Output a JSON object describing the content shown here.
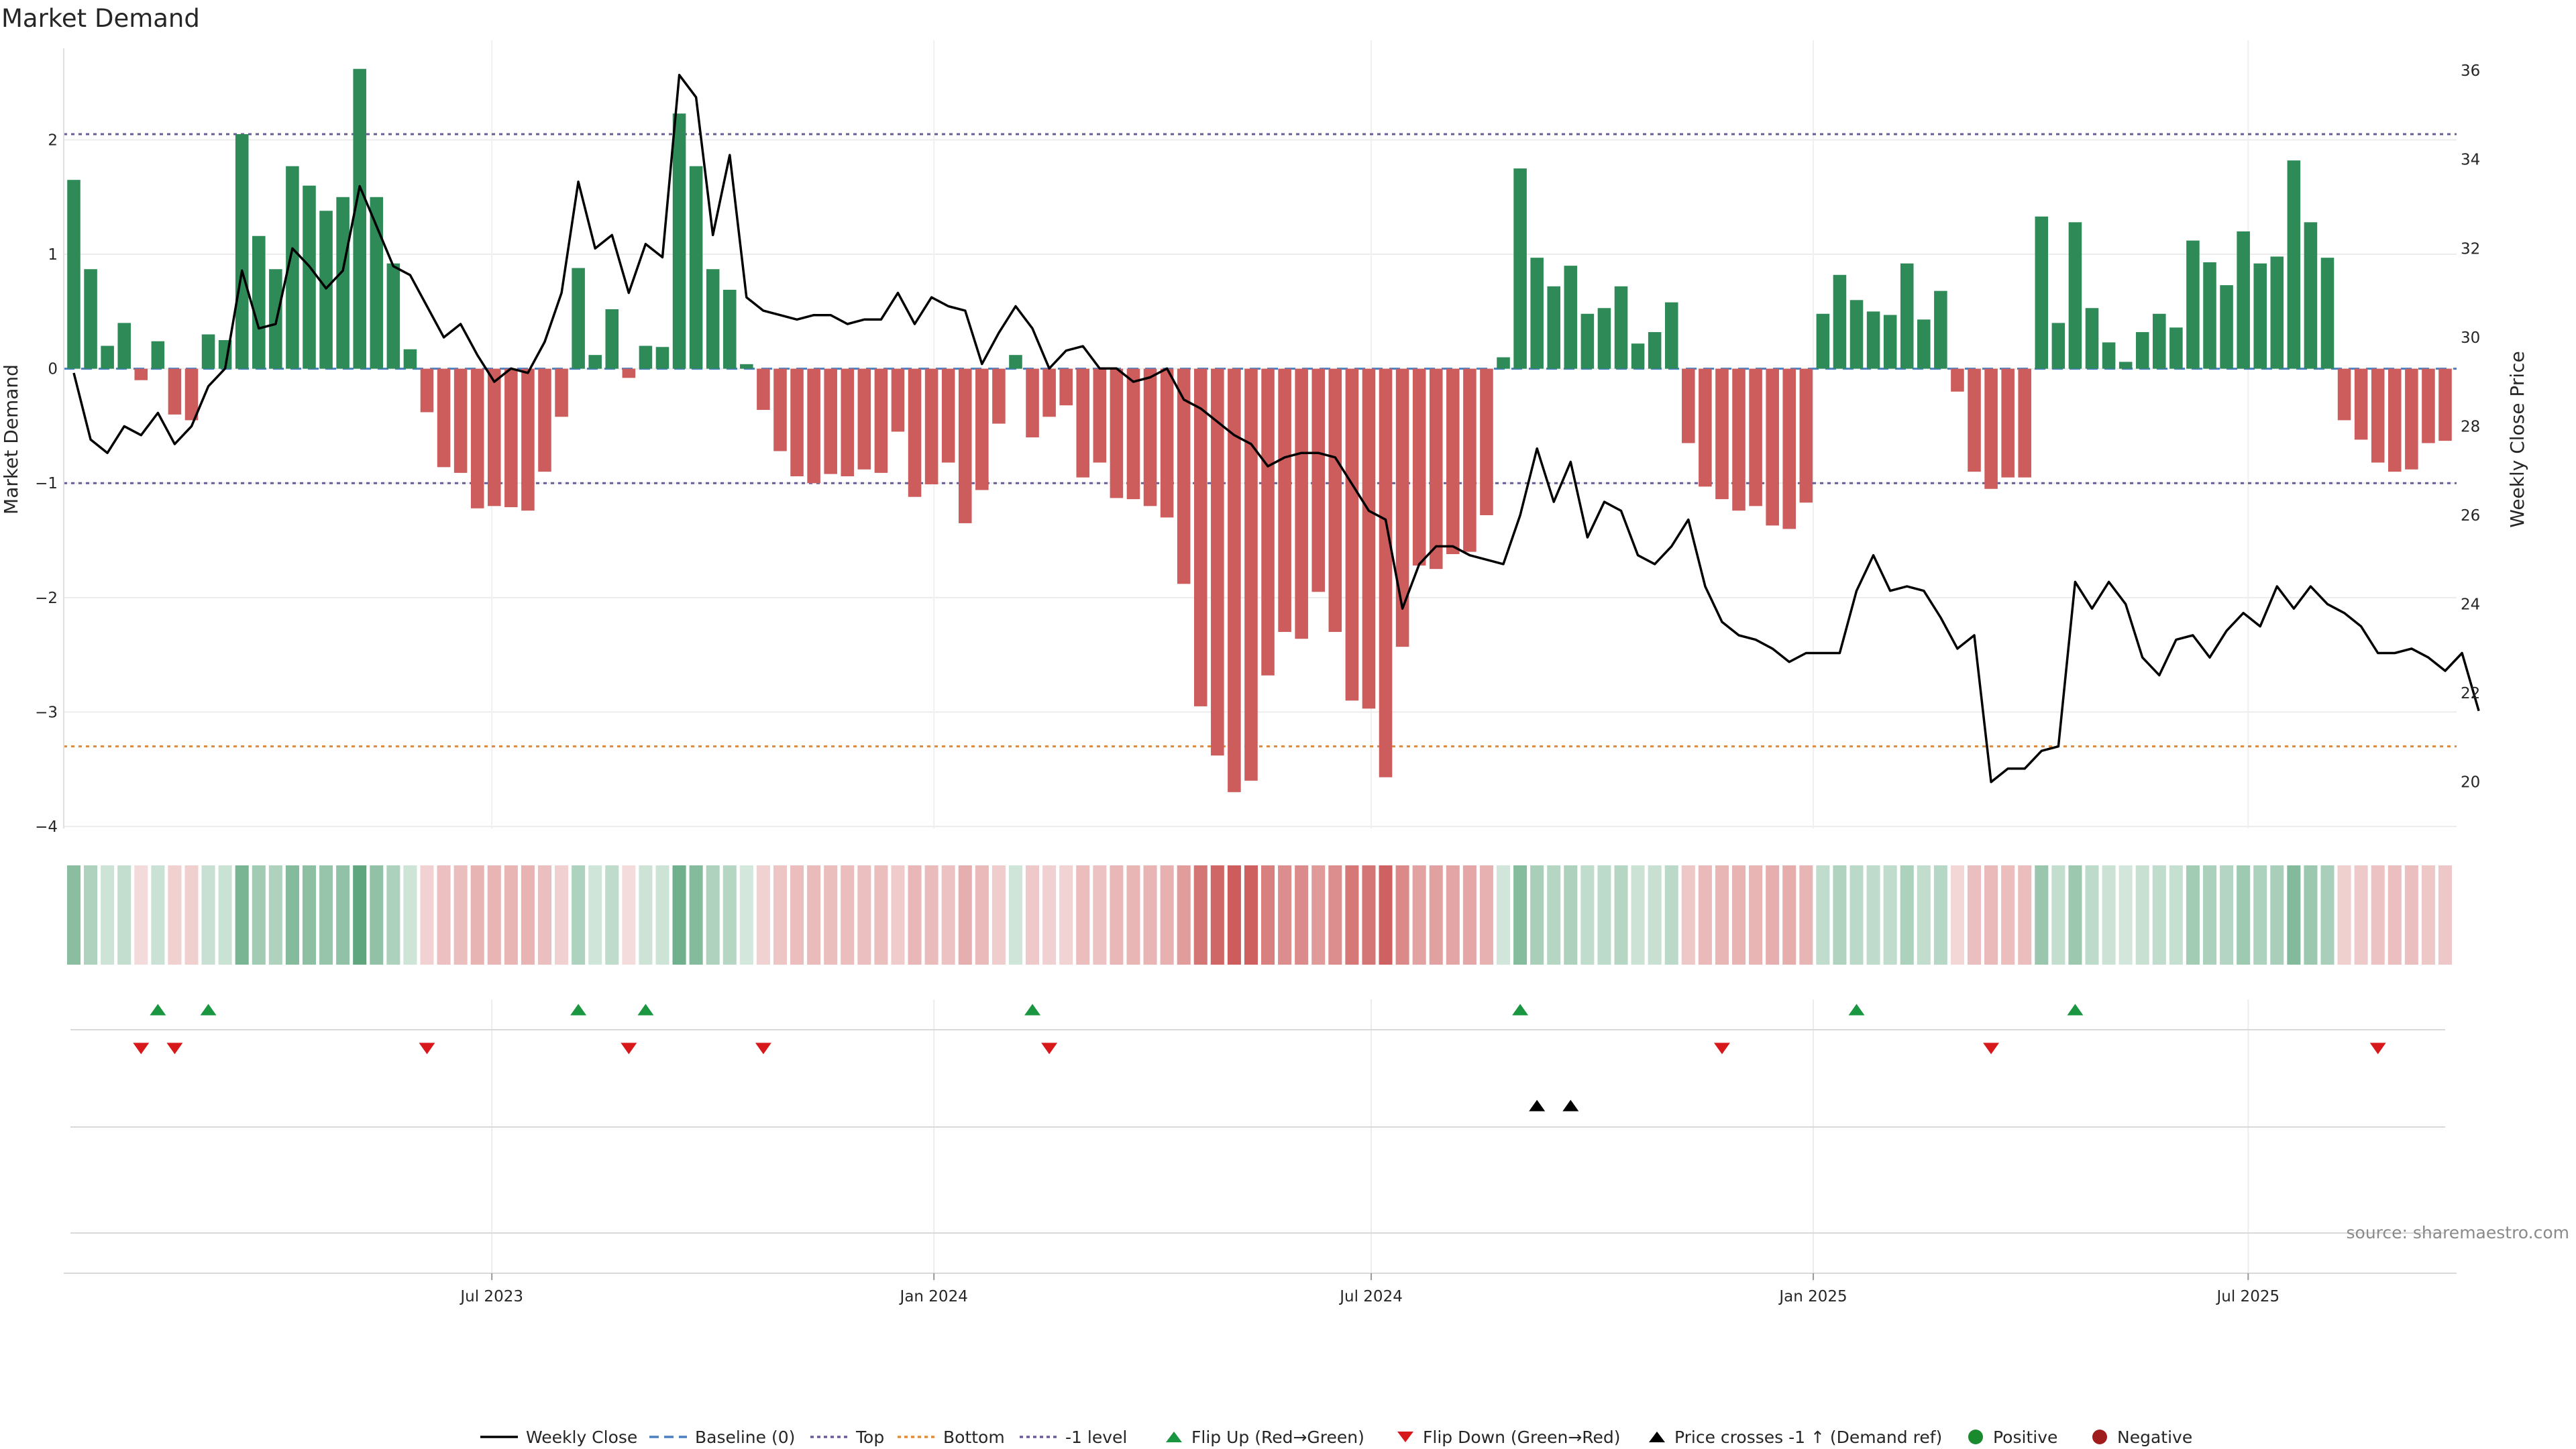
{
  "title": "Market Demand",
  "source": "source: sharemaestro.com",
  "colors": {
    "positive": "#2e8b57",
    "negative": "#cd5c5c",
    "price_line": "#000000",
    "baseline": "#4a7fc1",
    "top": "#6b5b95",
    "bottom": "#e08a3c",
    "minus_one": "#6b5b95",
    "flip_up": "#1a9641",
    "flip_down": "#d7191c",
    "cross": "#000000",
    "positive_dot": "#1a8a2e",
    "negative_dot": "#a01c1c"
  },
  "chart_data": {
    "type": "bar",
    "x_axis": {
      "tick_labels": [
        "Jul 2023",
        "Jan 2024",
        "Jul 2024",
        "Jan 2025",
        "Jul 2025"
      ],
      "tick_dates": [
        "2023-07-01",
        "2024-01-01",
        "2024-07-01",
        "2025-01-01",
        "2025-07-01"
      ],
      "range": [
        "2023-01-08",
        "2025-10-26"
      ]
    },
    "y_left": {
      "label": "Market Demand",
      "ticks": [
        2,
        1,
        0,
        -1,
        -2,
        -3,
        -4
      ],
      "range": [
        -4,
        2.8
      ]
    },
    "y_right": {
      "label": "Weekly Close Price",
      "ticks": [
        36,
        34,
        32,
        30,
        28,
        26,
        24,
        22,
        20
      ],
      "range": [
        19,
        36.5
      ]
    },
    "reference_lines": {
      "top": 2.05,
      "bottom": -3.3,
      "minus_one": -1.0,
      "baseline": 0
    },
    "start_date": "2023-01-08",
    "interval_days": 7,
    "demand": [
      1.65,
      0.87,
      0.2,
      0.4,
      -0.1,
      0.24,
      -0.4,
      -0.45,
      0.3,
      0.25,
      2.05,
      1.16,
      0.87,
      1.77,
      1.6,
      1.38,
      1.5,
      2.62,
      1.5,
      0.92,
      0.17,
      -0.38,
      -0.86,
      -0.91,
      -1.22,
      -1.2,
      -1.21,
      -1.24,
      -0.9,
      -0.42,
      0.88,
      0.12,
      0.52,
      -0.08,
      0.2,
      0.19,
      2.23,
      1.77,
      0.87,
      0.69,
      0.04,
      -0.36,
      -0.72,
      -0.94,
      -1.0,
      -0.92,
      -0.94,
      -0.88,
      -0.91,
      -0.55,
      -1.12,
      -1.01,
      -0.82,
      -1.35,
      -1.06,
      -0.48,
      0.12,
      -0.6,
      -0.42,
      -0.32,
      -0.95,
      -0.82,
      -1.13,
      -1.14,
      -1.2,
      -1.3,
      -1.88,
      -2.95,
      -3.38,
      -3.7,
      -3.6,
      -2.68,
      -2.3,
      -2.36,
      -1.95,
      -2.3,
      -2.9,
      -2.97,
      -3.57,
      -2.43,
      -1.72,
      -1.75,
      -1.62,
      -1.6,
      -1.28,
      0.1,
      1.75,
      0.97,
      0.72,
      0.9,
      0.48,
      0.53,
      0.72,
      0.22,
      0.32,
      0.58,
      -0.65,
      -1.03,
      -1.14,
      -1.24,
      -1.2,
      -1.37,
      -1.4,
      -1.17,
      0.48,
      0.82,
      0.6,
      0.5,
      0.47,
      0.92,
      0.43,
      0.68,
      -0.2,
      -0.9,
      -1.05,
      -0.95,
      -0.95,
      1.33,
      0.4,
      1.28,
      0.53,
      0.23,
      0.06,
      0.32,
      0.48,
      0.36,
      1.12,
      0.93,
      0.73,
      1.2,
      0.92,
      0.98,
      1.82,
      1.28,
      0.97,
      -0.45,
      -0.62,
      -0.82,
      -0.9,
      -0.88,
      -0.65,
      -0.63
    ],
    "price": [
      29.2,
      27.7,
      27.4,
      28.0,
      27.8,
      28.3,
      27.6,
      28.0,
      28.9,
      29.3,
      31.5,
      30.2,
      30.3,
      32.0,
      31.6,
      31.1,
      31.5,
      33.4,
      32.5,
      31.6,
      31.4,
      30.7,
      30.0,
      30.3,
      29.6,
      29.0,
      29.3,
      29.2,
      29.9,
      31.0,
      33.5,
      32.0,
      32.3,
      31.0,
      32.1,
      31.8,
      35.9,
      35.4,
      32.3,
      34.1,
      30.9,
      30.6,
      30.5,
      30.4,
      30.5,
      30.5,
      30.3,
      30.4,
      30.4,
      31.0,
      30.3,
      30.9,
      30.7,
      30.6,
      29.4,
      30.1,
      30.7,
      30.2,
      29.3,
      29.7,
      29.8,
      29.3,
      29.3,
      29.0,
      29.1,
      29.3,
      28.6,
      28.4,
      28.1,
      27.8,
      27.6,
      27.1,
      27.3,
      27.4,
      27.4,
      27.3,
      26.7,
      26.1,
      25.9,
      23.9,
      24.9,
      25.3,
      25.3,
      25.1,
      25.0,
      24.9,
      26.0,
      27.5,
      26.3,
      27.2,
      25.5,
      26.3,
      26.1,
      25.1,
      24.9,
      25.3,
      25.9,
      24.4,
      23.6,
      23.3,
      23.2,
      23.0,
      22.7,
      22.9,
      22.9,
      22.9,
      24.3,
      25.1,
      24.3,
      24.4,
      24.3,
      23.7,
      23.0,
      23.3,
      20.0,
      20.3,
      20.3,
      20.7,
      20.8,
      24.5,
      23.9,
      24.5,
      24.0,
      22.8,
      22.4,
      23.2,
      23.3,
      22.8,
      23.4,
      23.8,
      23.5,
      24.4,
      23.9,
      24.4,
      24.0,
      23.8,
      23.5,
      22.9,
      22.9,
      23.0,
      22.8,
      22.5,
      22.9,
      21.6
    ],
    "flip_up_weeks": [
      5,
      8,
      30,
      34,
      57,
      86,
      106,
      119
    ],
    "flip_down_weeks": [
      4,
      6,
      21,
      33,
      41,
      58,
      98,
      114,
      137
    ],
    "price_cross_weeks": [
      87,
      89
    ],
    "legend": [
      "Weekly Close",
      "Baseline (0)",
      "Top",
      "Bottom",
      "-1 level",
      "Flip Up (Red→Green)",
      "Flip Down (Green→Red)",
      "Price crosses -1 ↑ (Demand ref)",
      "Positive",
      "Negative"
    ]
  }
}
